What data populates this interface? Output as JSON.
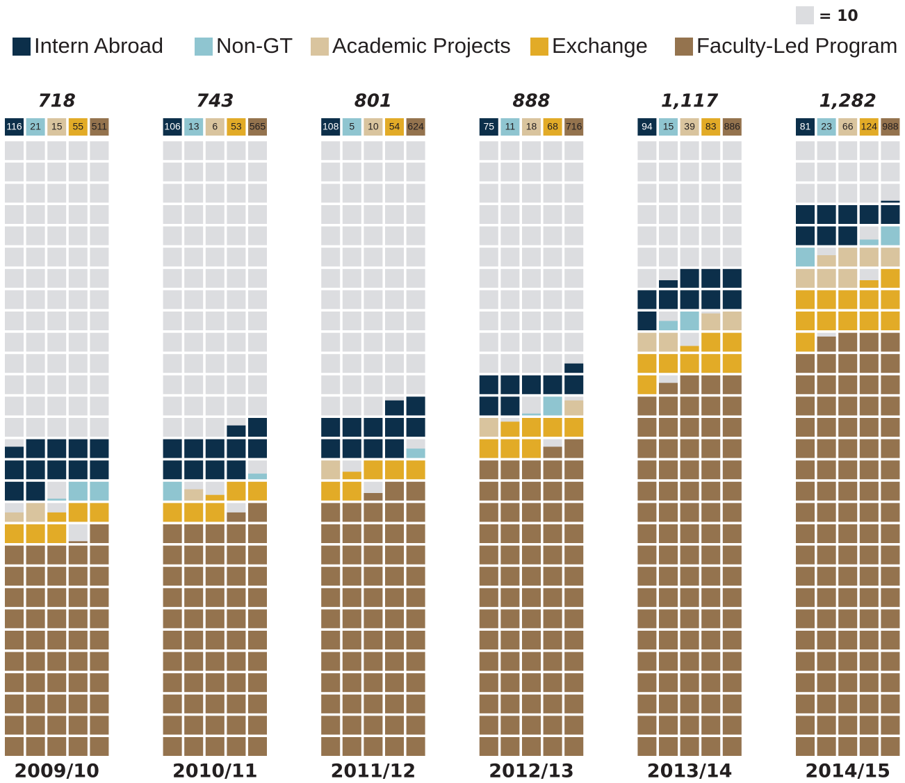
{
  "chart_data": {
    "type": "waffle",
    "unit": 10,
    "key_label": "= 10",
    "key_color": "#dcdde0",
    "categories": [
      "2009/10",
      "2010/11",
      "2011/12",
      "2012/13",
      "2013/14",
      "2014/15"
    ],
    "total_labels": [
      "718",
      "743",
      "801",
      "888",
      "1,117",
      "1,282"
    ],
    "series": [
      {
        "name": "Intern Abroad",
        "color": "#0c2f4a",
        "values": [
          116,
          106,
          108,
          75,
          94,
          81
        ]
      },
      {
        "name": "Non-GT",
        "color": "#8fc5d0",
        "values": [
          21,
          13,
          5,
          11,
          15,
          23
        ]
      },
      {
        "name": "Academic Projects",
        "color": "#d9c49e",
        "values": [
          15,
          6,
          10,
          18,
          39,
          66
        ]
      },
      {
        "name": "Exchange",
        "color": "#e2ab27",
        "values": [
          55,
          53,
          54,
          68,
          83,
          124
        ]
      },
      {
        "name": "Faculty-Led Program",
        "color": "#94734e",
        "values": [
          511,
          565,
          624,
          716,
          886,
          988
        ]
      }
    ]
  }
}
